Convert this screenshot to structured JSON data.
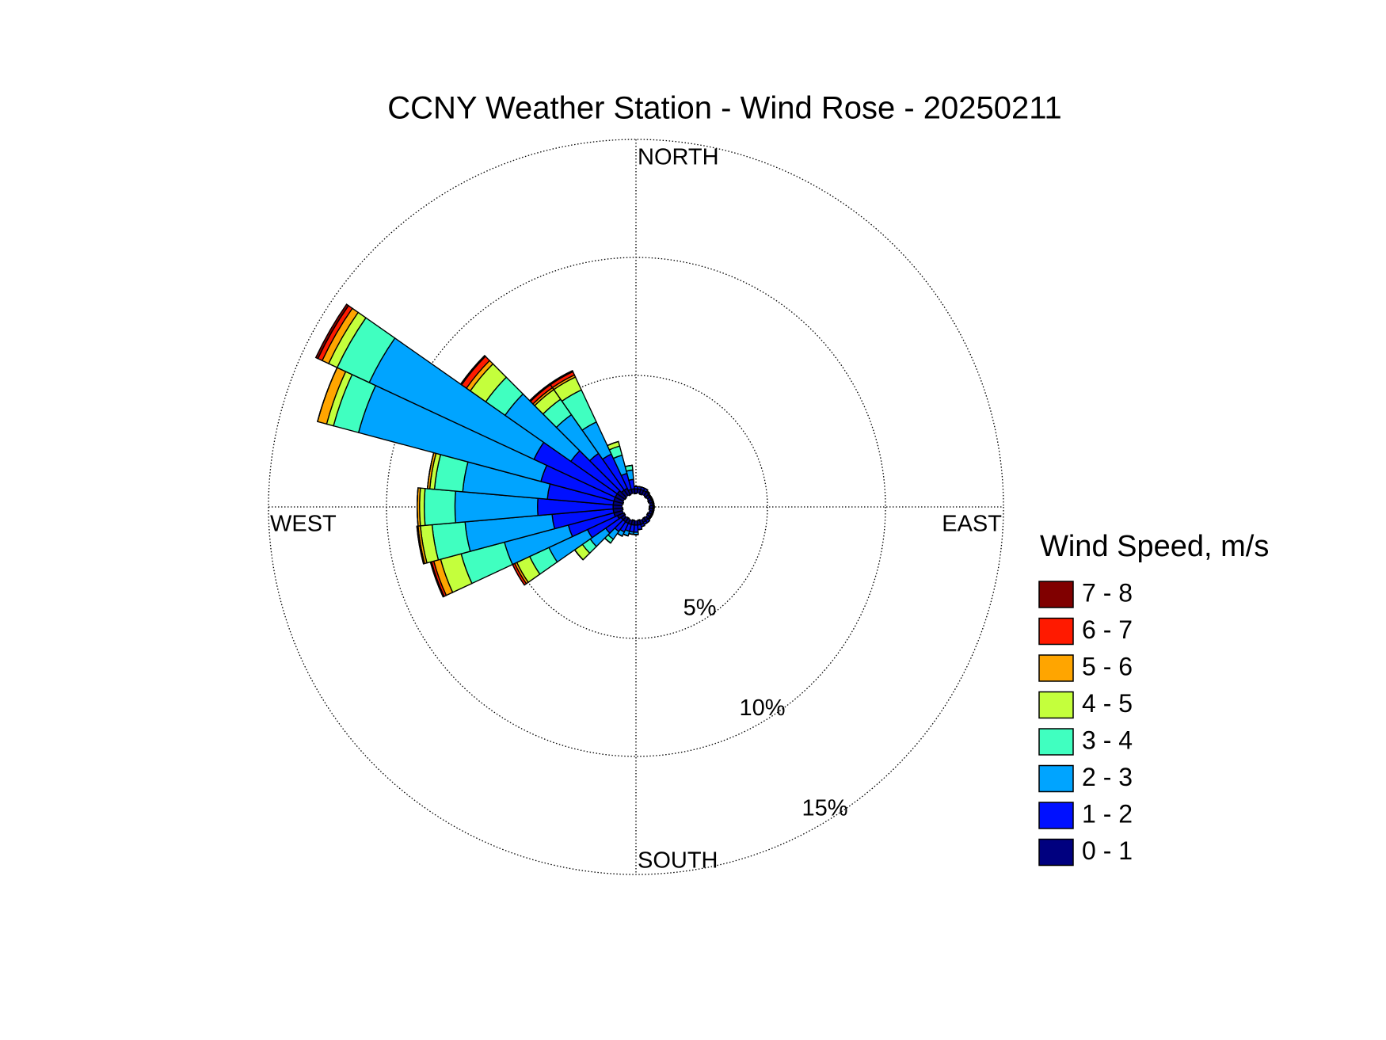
{
  "chart_data": {
    "type": "windrose",
    "title": "CCNY Weather Station - Wind Rose - 20250211",
    "legend_title": "Wind Speed, m/s",
    "direction_labels": [
      "NORTH",
      "EAST",
      "SOUTH",
      "WEST"
    ],
    "x": [
      0,
      10,
      20,
      30,
      40,
      50,
      60,
      70,
      80,
      90,
      100,
      110,
      120,
      130,
      140,
      150,
      160,
      170,
      180,
      190,
      200,
      210,
      220,
      230,
      240,
      250,
      260,
      270,
      280,
      290,
      300,
      310,
      320,
      330,
      340,
      350
    ],
    "rlim": [
      0,
      15
    ],
    "rticks": [
      {
        "value": 5,
        "label": "5%"
      },
      {
        "value": 10,
        "label": "10%"
      },
      {
        "value": 15,
        "label": "15%"
      }
    ],
    "grid": true,
    "series": [
      {
        "name": "0 - 1",
        "color": "#00007f",
        "values": [
          0.2,
          0.2,
          0.2,
          0.2,
          0.2,
          0.15,
          0.15,
          0.15,
          0.15,
          0.15,
          0.15,
          0.15,
          0.15,
          0.15,
          0.15,
          0.15,
          0.2,
          0.2,
          0.2,
          0.2,
          0.2,
          0.2,
          0.2,
          0.2,
          0.3,
          0.4,
          0.4,
          0.4,
          0.4,
          0.4,
          0.4,
          0.4,
          0.3,
          0.3,
          0.2,
          0.2
        ]
      },
      {
        "name": "1 - 2",
        "color": "#0010ff",
        "values": [
          0.1,
          0.1,
          0.1,
          0.1,
          0.05,
          0.05,
          0.05,
          0.05,
          0.05,
          0.05,
          0.05,
          0.05,
          0.05,
          0.05,
          0.1,
          0.1,
          0.1,
          0.2,
          0.3,
          0.3,
          0.3,
          0.4,
          0.5,
          0.8,
          1.4,
          2.0,
          2.6,
          3.2,
          2.8,
          3.2,
          3.8,
          2.4,
          1.9,
          1.6,
          0.7,
          0.4
        ]
      },
      {
        "name": "2 - 3",
        "color": "#00a4ff",
        "values": [
          0,
          0,
          0,
          0,
          0,
          0,
          0,
          0,
          0,
          0,
          0,
          0,
          0,
          0,
          0,
          0,
          0,
          0,
          0.1,
          0.1,
          0.2,
          0.2,
          0.4,
          0.8,
          1.8,
          2.8,
          3.7,
          3.5,
          3.6,
          8.0,
          7.7,
          3.4,
          2.0,
          1.5,
          0.8,
          0.4
        ]
      },
      {
        "name": "3 - 4",
        "color": "#40ffc0",
        "values": [
          0,
          0,
          0,
          0,
          0,
          0,
          0,
          0,
          0,
          0,
          0,
          0,
          0,
          0,
          0,
          0,
          0,
          0,
          0,
          0,
          0,
          0,
          0.2,
          0.4,
          0.9,
          1.9,
          1.4,
          1.3,
          1.2,
          1.1,
          1.5,
          1.0,
          0.8,
          1.5,
          0.4,
          0.2
        ]
      },
      {
        "name": "4 - 5",
        "color": "#c4ff3c",
        "values": [
          0,
          0,
          0,
          0,
          0,
          0,
          0,
          0,
          0,
          0,
          0,
          0,
          0,
          0,
          0,
          0,
          0,
          0,
          0,
          0,
          0,
          0,
          0,
          0.4,
          0.6,
          0.9,
          0.5,
          0.2,
          0.2,
          0.3,
          0.4,
          0.8,
          0.5,
          0.6,
          0.2,
          0
        ]
      },
      {
        "name": "5 - 6",
        "color": "#ffa500",
        "values": [
          0,
          0,
          0,
          0,
          0,
          0,
          0,
          0,
          0,
          0,
          0,
          0,
          0,
          0,
          0,
          0,
          0,
          0,
          0,
          0,
          0,
          0,
          0,
          0,
          0.1,
          0.3,
          0.1,
          0.1,
          0.1,
          0.4,
          0.3,
          0.2,
          0.1,
          0.1,
          0,
          0
        ]
      },
      {
        "name": "6 - 7",
        "color": "#ff1a00",
        "values": [
          0,
          0,
          0,
          0,
          0,
          0,
          0,
          0,
          0,
          0,
          0,
          0,
          0,
          0,
          0,
          0,
          0,
          0,
          0,
          0,
          0,
          0,
          0,
          0,
          0.1,
          0.1,
          0.05,
          0,
          0,
          0,
          0.2,
          0.25,
          0.15,
          0.15,
          0,
          0
        ]
      },
      {
        "name": "7 - 8",
        "color": "#800000",
        "values": [
          0,
          0,
          0,
          0,
          0,
          0,
          0,
          0,
          0,
          0,
          0,
          0,
          0,
          0,
          0,
          0,
          0,
          0,
          0,
          0,
          0,
          0,
          0,
          0,
          0,
          0.05,
          0,
          0,
          0,
          0,
          0.1,
          0.05,
          0.05,
          0.05,
          0,
          0
        ]
      }
    ]
  }
}
